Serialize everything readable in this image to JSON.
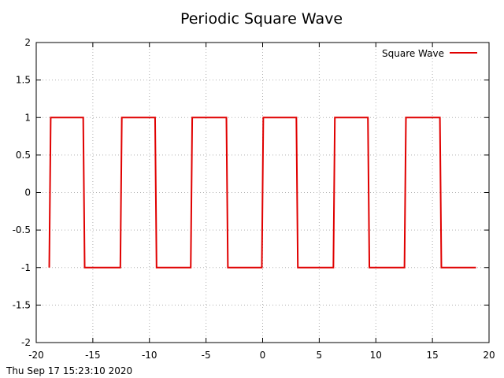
{
  "chart_data": {
    "type": "line",
    "title": "Periodic Square Wave",
    "xlabel": "",
    "ylabel": "",
    "xlim": [
      -20,
      20
    ],
    "ylim": [
      -2,
      2
    ],
    "x_ticks": [
      -20,
      -15,
      -10,
      -5,
      0,
      5,
      10,
      15,
      20
    ],
    "y_ticks": [
      -2,
      -1.5,
      -1,
      -0.5,
      0,
      0.5,
      1,
      1.5,
      2
    ],
    "x_tick_labels": [
      "-20",
      "-15",
      "-10",
      "-5",
      "0",
      "5",
      "10",
      "15",
      "20"
    ],
    "y_tick_labels": [
      "-2",
      "-1.5",
      "-1",
      "-0.5",
      "0",
      "0.5",
      "1",
      "1.5",
      "2"
    ],
    "grid": true,
    "legend_position": "top-right",
    "series": [
      {
        "name": "Square Wave",
        "color": "#e00000",
        "points": [
          [
            -18.85,
            -1
          ],
          [
            -18.72,
            1
          ],
          [
            -15.85,
            1
          ],
          [
            -15.72,
            -1
          ],
          [
            -12.57,
            -1
          ],
          [
            -12.44,
            1
          ],
          [
            -9.5,
            1
          ],
          [
            -9.37,
            -1
          ],
          [
            -6.35,
            -1
          ],
          [
            -6.22,
            1
          ],
          [
            -3.2,
            1
          ],
          [
            -3.07,
            -1
          ],
          [
            -0.07,
            -1
          ],
          [
            0.06,
            1
          ],
          [
            2.98,
            1
          ],
          [
            3.11,
            -1
          ],
          [
            6.25,
            -1
          ],
          [
            6.38,
            1
          ],
          [
            9.3,
            1
          ],
          [
            9.43,
            -1
          ],
          [
            12.53,
            -1
          ],
          [
            12.66,
            1
          ],
          [
            15.66,
            1
          ],
          [
            15.79,
            -1
          ],
          [
            18.85,
            -1
          ]
        ]
      }
    ]
  },
  "footer": {
    "timestamp": "Thu Sep 17 15:23:10 2020"
  }
}
